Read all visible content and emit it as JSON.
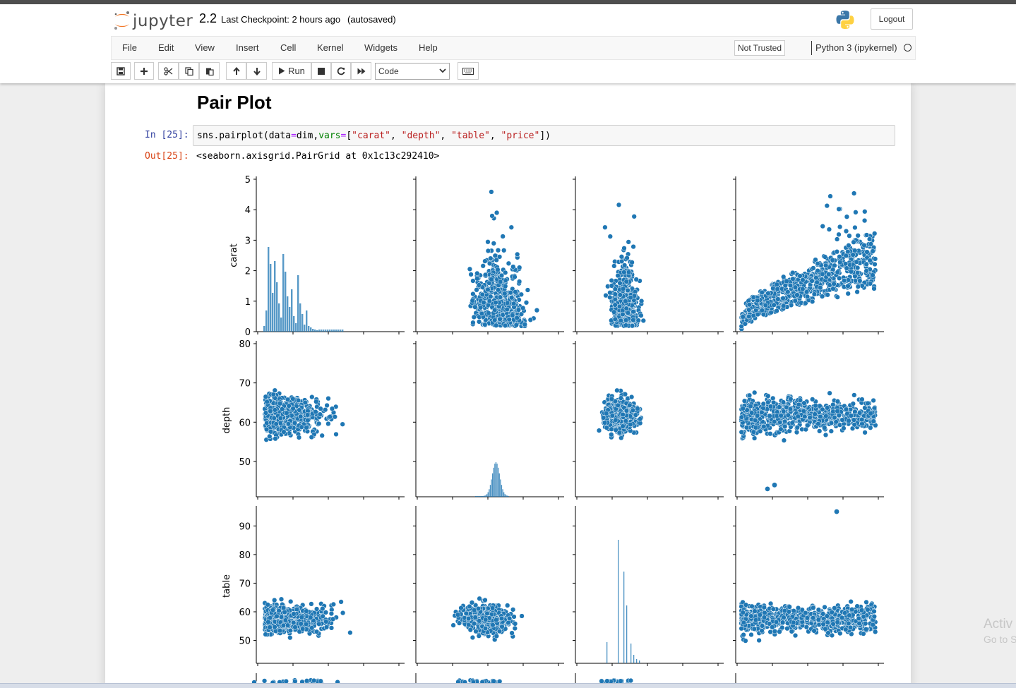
{
  "header": {
    "logo_text": "jupyter",
    "notebook_title": "2.2",
    "checkpoint": "Last Checkpoint: 2 hours ago",
    "autosave": "(autosaved)",
    "logout_label": "Logout"
  },
  "menu": {
    "items": [
      "File",
      "Edit",
      "View",
      "Insert",
      "Cell",
      "Kernel",
      "Widgets",
      "Help"
    ],
    "trust_label": "Not Trusted",
    "kernel_name": "Python 3 (ipykernel)"
  },
  "toolbar": {
    "run_label": "Run",
    "cell_type": "Code",
    "icons": [
      "save-icon",
      "plus-icon",
      "scissors-icon",
      "copy-icon",
      "paste-icon",
      "arrow-up-icon",
      "arrow-down-icon",
      "run-icon",
      "stop-icon",
      "restart-icon",
      "fast-forward-icon",
      "keyboard-icon"
    ]
  },
  "cells": {
    "markdown_heading": "Pair Plot",
    "input_prompt": "In [25]:",
    "code_tokens": [
      {
        "t": "sns.pairplot(data",
        "c": ""
      },
      {
        "t": "=",
        "c": "op"
      },
      {
        "t": "dim,",
        "c": ""
      },
      {
        "t": "vars",
        "c": "kw"
      },
      {
        "t": "=",
        "c": "op"
      },
      {
        "t": "[",
        "c": ""
      },
      {
        "t": "\"carat\"",
        "c": "str"
      },
      {
        "t": ", ",
        "c": ""
      },
      {
        "t": "\"depth\"",
        "c": "str"
      },
      {
        "t": ", ",
        "c": ""
      },
      {
        "t": "\"table\"",
        "c": "str"
      },
      {
        "t": ", ",
        "c": ""
      },
      {
        "t": "\"price\"",
        "c": "str"
      },
      {
        "t": "])",
        "c": ""
      }
    ],
    "output_prompt": "Out[25]:",
    "output_text": "<seaborn.axisgrid.PairGrid at 0x1c13c292410>"
  },
  "chart_data": {
    "type": "scatter",
    "variables": [
      "carat",
      "depth",
      "table",
      "price"
    ],
    "row_labels": [
      "carat",
      "depth",
      "table"
    ],
    "diagonal": "histogram",
    "color": "#1f77b4",
    "axes": {
      "carat": {
        "ticks": [
          0,
          1,
          2,
          3,
          4,
          5
        ],
        "range": [
          0,
          5
        ]
      },
      "depth": {
        "ticks": [
          50,
          60,
          70,
          80
        ],
        "range": [
          41,
          80
        ]
      },
      "table": {
        "ticks": [
          50,
          60,
          70,
          80,
          90
        ],
        "range": [
          42,
          96
        ]
      }
    }
  },
  "watermark": {
    "line1": "Activ",
    "line2": "Go to S"
  }
}
